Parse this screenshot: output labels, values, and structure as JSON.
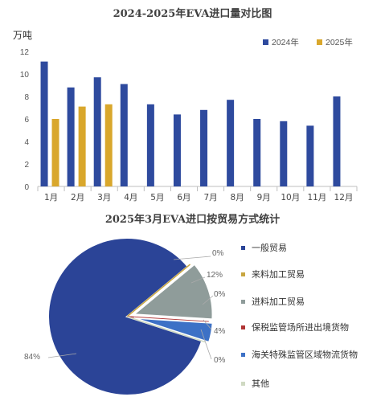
{
  "chart_data": [
    {
      "type": "bar",
      "title": "2024-2025年EVA进口量对比图",
      "ylabel": "万吨",
      "ylim": [
        0,
        12
      ],
      "yticks": [
        0,
        2,
        4,
        6,
        8,
        10,
        12
      ],
      "categories": [
        "1月",
        "2月",
        "3月",
        "4月",
        "5月",
        "6月",
        "7月",
        "8月",
        "9月",
        "10月",
        "11月",
        "12月"
      ],
      "series": [
        {
          "name": "2024年",
          "color": "#2e4a9e",
          "values": [
            11.1,
            8.8,
            9.7,
            9.1,
            7.3,
            6.4,
            6.8,
            7.7,
            6.0,
            5.8,
            5.4,
            8.0
          ]
        },
        {
          "name": "2025年",
          "color": "#d9a72c",
          "values": [
            6.0,
            7.1,
            7.3,
            null,
            null,
            null,
            null,
            null,
            null,
            null,
            null,
            null
          ]
        }
      ],
      "legend_position": "top-right",
      "grid": false
    },
    {
      "type": "pie",
      "title": "2025年3月EVA进口按贸易方式统计",
      "slices": [
        {
          "name": "一般贸易",
          "value": 84,
          "label": "84%",
          "color": "#2b4497"
        },
        {
          "name": "来料加工贸易",
          "value": 0,
          "label": "0%",
          "color": "#c8a640"
        },
        {
          "name": "进料加工贸易",
          "value": 12,
          "label": "12%",
          "color": "#8f9c9a"
        },
        {
          "name": "保税监管场所进出境货物",
          "value": 0,
          "label": "0%",
          "color": "#b03434"
        },
        {
          "name": "海关特殊监管区域物流货物",
          "value": 4,
          "label": "4%",
          "color": "#3d71c6"
        },
        {
          "name": "其他",
          "value": 0,
          "label": "0%",
          "color": "#cfd9c2"
        }
      ],
      "legend_position": "right"
    }
  ]
}
